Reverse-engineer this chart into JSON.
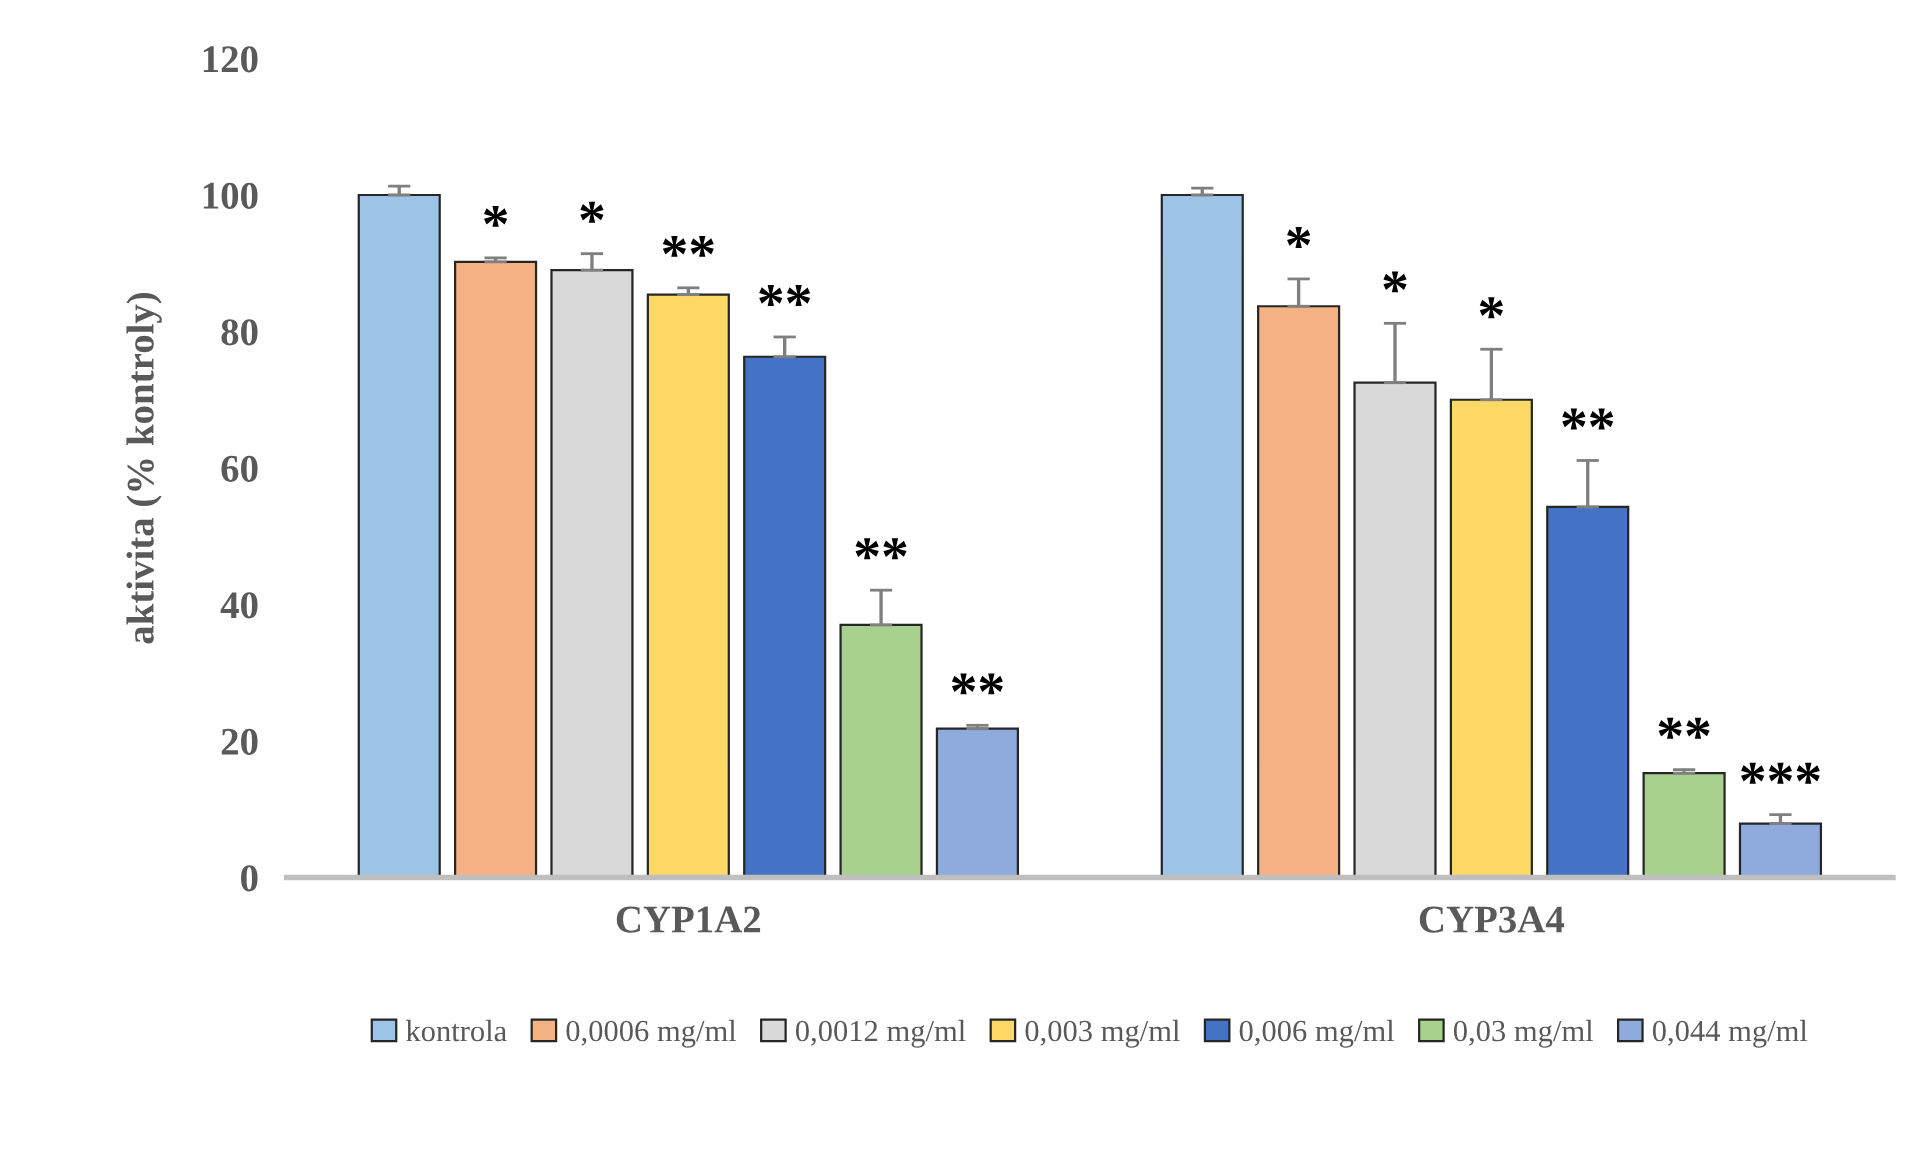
{
  "chart_data": {
    "type": "bar",
    "ylabel": "aktivita (% kontroly)",
    "categories": [
      "CYP1A2",
      "CYP3A4"
    ],
    "ylim": [
      0,
      120
    ],
    "yticks": [
      0,
      20,
      40,
      60,
      80,
      100,
      120
    ],
    "grid": false,
    "legend": "bottom",
    "series": [
      {
        "name": "kontrola",
        "color": "#9dc3e6",
        "values": [
          100,
          100
        ],
        "errors": [
          [
            100,
            101.3
          ],
          [
            100,
            101
          ]
        ],
        "value_labels": [
          null,
          null
        ]
      },
      {
        "name": "0,0006 mg/ml",
        "color": "#f4b183",
        "values": [
          90.2,
          83.7
        ],
        "errors": [
          [
            90.2,
            90.8
          ],
          [
            83.7,
            87.7
          ]
        ],
        "value_labels": [
          "*",
          "*"
        ]
      },
      {
        "name": "0,0012 mg/ml",
        "color": "#d9d9d9",
        "values": [
          89,
          72.5
        ],
        "errors": [
          [
            89,
            91.4
          ],
          [
            72.5,
            81.2
          ]
        ],
        "value_labels": [
          "*",
          "*"
        ]
      },
      {
        "name": "0,003 mg/ml",
        "color": "#ffd966",
        "values": [
          85.4,
          70
        ],
        "errors": [
          [
            85.4,
            86.4
          ],
          [
            70,
            77.4
          ]
        ],
        "value_labels": [
          "**",
          "*"
        ]
      },
      {
        "name": "0,006 mg/ml",
        "color": "#4472c4",
        "values": [
          76.3,
          54.3
        ],
        "errors": [
          [
            76.3,
            79.2
          ],
          [
            54.3,
            61.1
          ]
        ],
        "value_labels": [
          "**",
          "**"
        ]
      },
      {
        "name": "0,03 mg/ml",
        "color": "#a9d18e",
        "values": [
          37,
          15.3
        ],
        "errors": [
          [
            37,
            42.1
          ],
          [
            15.3,
            15.8
          ]
        ],
        "value_labels": [
          "**",
          "**"
        ]
      },
      {
        "name": "0,044 mg/ml",
        "color": "#8faadc",
        "values": [
          21.8,
          7.9
        ],
        "errors": [
          [
            21.8,
            22.3
          ],
          [
            7.9,
            9.2
          ]
        ],
        "value_labels": [
          "**",
          "***"
        ]
      }
    ]
  }
}
